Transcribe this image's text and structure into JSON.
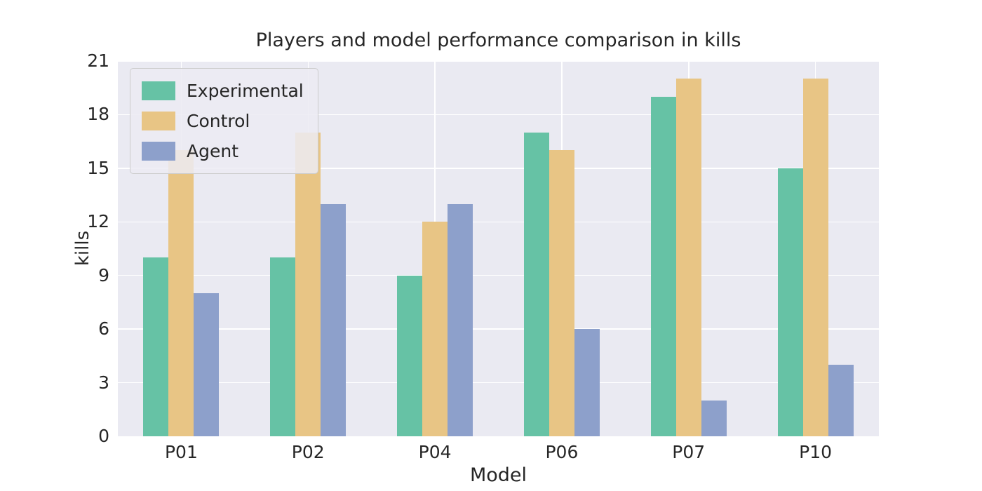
{
  "chart_data": {
    "type": "bar",
    "title": "Players and model performance comparison in kills",
    "xlabel": "Model",
    "ylabel": "kills",
    "categories": [
      "P01",
      "P02",
      "P04",
      "P06",
      "P07",
      "P10"
    ],
    "series": [
      {
        "name": "Experimental",
        "color": "#66c2a5",
        "values": [
          10,
          10,
          9,
          17,
          19,
          15
        ]
      },
      {
        "name": "Control",
        "color": "#e8c585",
        "values": [
          16,
          17,
          12,
          16,
          20,
          20
        ]
      },
      {
        "name": "Agent",
        "color": "#8da0cb",
        "values": [
          8,
          13,
          13,
          6,
          2,
          4
        ]
      }
    ],
    "ylim": [
      0,
      21
    ],
    "yticks": [
      0,
      3,
      6,
      9,
      12,
      15,
      18,
      21
    ],
    "grid": true,
    "legend_position": "upper left",
    "colors": {
      "figure_background": "#ffffff",
      "plot_background": "#eaeaf2",
      "grid": "#ffffff",
      "text": "#262626",
      "legend_background": "rgba(236,235,243,0.85)",
      "legend_border": "#cccccc"
    }
  }
}
